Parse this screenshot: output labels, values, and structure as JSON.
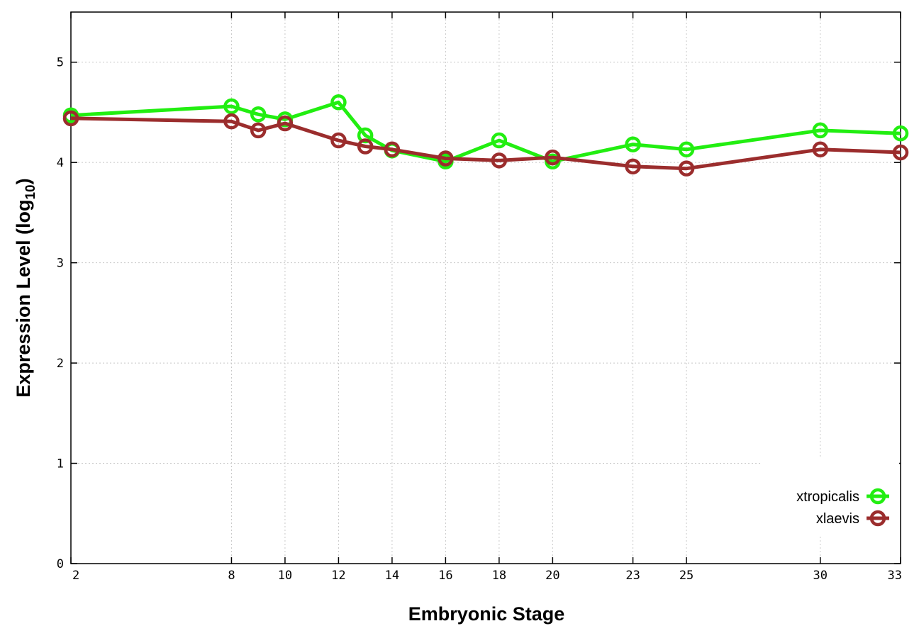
{
  "chart_data": {
    "type": "line",
    "xlabel": "Embryonic Stage",
    "ylabel_main": "Expression Level (log",
    "ylabel_sub": "10",
    "ylabel_close": ")",
    "xlim": [
      2,
      33
    ],
    "ylim": [
      0,
      5.5
    ],
    "x_ticks": [
      2,
      8,
      10,
      12,
      14,
      16,
      18,
      20,
      23,
      25,
      30,
      33
    ],
    "y_ticks": [
      0,
      1,
      2,
      3,
      4,
      5
    ],
    "grid": true,
    "legend_position": "bottom-right",
    "series": [
      {
        "name": "xtropicalis",
        "color": "#22ee11",
        "x": [
          2,
          8,
          9,
          10,
          12,
          13,
          14,
          16,
          18,
          20,
          23,
          25,
          30,
          33
        ],
        "values": [
          4.47,
          4.56,
          4.48,
          4.43,
          4.6,
          4.27,
          4.12,
          4.01,
          4.22,
          4.01,
          4.18,
          4.13,
          4.32,
          4.29
        ]
      },
      {
        "name": "xlaevis",
        "color": "#9b2d2d",
        "x": [
          2,
          8,
          9,
          10,
          12,
          13,
          14,
          16,
          18,
          20,
          23,
          25,
          30,
          33
        ],
        "values": [
          4.44,
          4.41,
          4.32,
          4.39,
          4.22,
          4.16,
          4.13,
          4.04,
          4.02,
          4.05,
          3.96,
          3.94,
          4.13,
          4.1
        ]
      }
    ]
  }
}
